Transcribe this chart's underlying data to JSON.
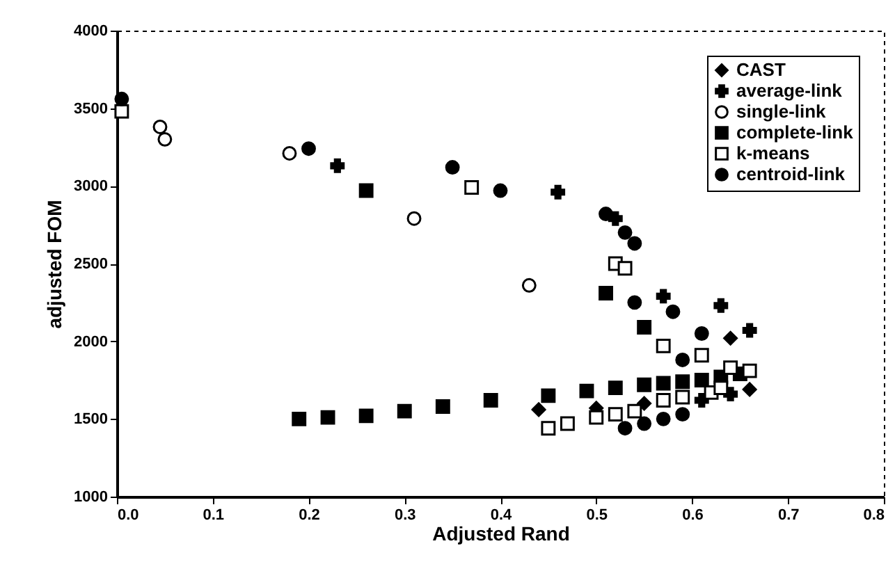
{
  "chart_data": {
    "type": "scatter",
    "xlabel": "Adjusted Rand",
    "ylabel": "adjusted FOM",
    "xlim": [
      0,
      0.8
    ],
    "xticks": [
      {
        "value": 0,
        "label": "0.0"
      },
      0.1,
      0.2,
      0.3,
      0.4,
      0.5,
      0.6,
      0.7,
      0.8
    ],
    "ylim": [
      1000,
      4000
    ],
    "yticks": [
      1000,
      1500,
      2000,
      2500,
      3000,
      3500,
      4000
    ],
    "grid": false,
    "legend": "top right",
    "series": [
      {
        "name": "CAST",
        "color": "#000000",
        "marker": "diamond",
        "x": [
          0.44,
          0.5,
          0.55,
          0.64,
          0.66
        ],
        "values": [
          1560,
          1570,
          1600,
          2020,
          1690
        ]
      },
      {
        "name": "average-link",
        "color": "#000000",
        "marker": "cross",
        "x": [
          0.23,
          0.46,
          0.52,
          0.57,
          0.63,
          0.66,
          0.61,
          0.64
        ],
        "values": [
          3130,
          2960,
          2790,
          2290,
          2230,
          2070,
          1620,
          1660
        ]
      },
      {
        "name": "single-link",
        "color": "#000000",
        "marker": "circle",
        "x": [
          0.045,
          0.05,
          0.18,
          0.31,
          0.43
        ],
        "values": [
          3380,
          3300,
          3210,
          2790,
          2360
        ]
      },
      {
        "name": "complete-link",
        "color": "#000000",
        "marker": "square",
        "x": [
          0.26,
          0.51,
          0.55,
          0.19,
          0.22,
          0.26,
          0.3,
          0.34,
          0.39,
          0.45,
          0.49,
          0.52,
          0.55,
          0.57,
          0.59,
          0.61,
          0.63,
          0.65
        ],
        "values": [
          2970,
          2310,
          2090,
          1500,
          1510,
          1520,
          1550,
          1580,
          1620,
          1650,
          1680,
          1700,
          1720,
          1730,
          1740,
          1750,
          1770,
          1790
        ]
      },
      {
        "name": "k-means",
        "color": "#000000",
        "marker": "square",
        "x": [
          0.005,
          0.37,
          0.52,
          0.53,
          0.57,
          0.61,
          0.64,
          0.66,
          0.45,
          0.47,
          0.5,
          0.52,
          0.54,
          0.57,
          0.59,
          0.62,
          0.63
        ],
        "values": [
          3480,
          2990,
          2500,
          2470,
          1970,
          1910,
          1830,
          1810,
          1440,
          1470,
          1510,
          1530,
          1550,
          1620,
          1640,
          1670,
          1700
        ]
      },
      {
        "name": "centroid-link",
        "color": "#000000",
        "marker": "circle",
        "x": [
          0.005,
          0.2,
          0.35,
          0.4,
          0.51,
          0.53,
          0.54,
          0.54,
          0.58,
          0.61,
          0.59,
          0.53,
          0.55,
          0.57,
          0.59
        ],
        "values": [
          3560,
          3240,
          3120,
          2970,
          2820,
          2700,
          2630,
          2250,
          2190,
          2050,
          1880,
          1440,
          1470,
          1500,
          1530
        ]
      }
    ]
  }
}
